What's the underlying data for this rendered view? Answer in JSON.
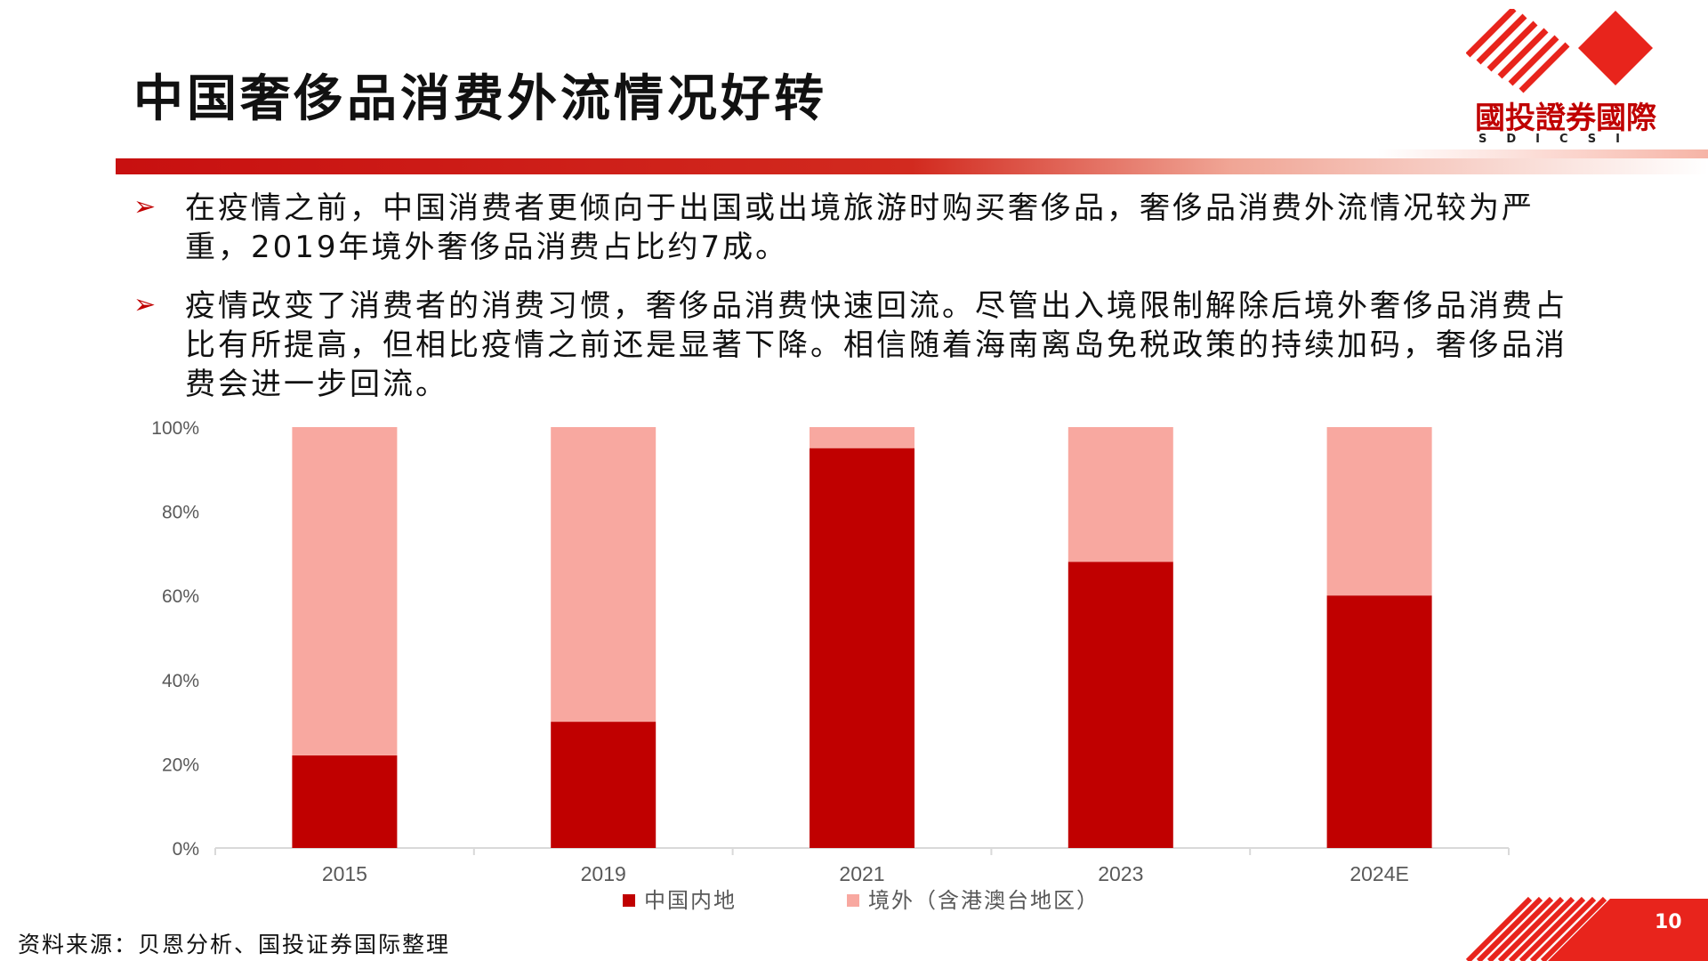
{
  "header": {
    "title": "中国奢侈品消费外流情况好转",
    "logo_text": "國投證券國際",
    "logo_sub": "SDICSI"
  },
  "bullets": [
    "在疫情之前，中国消费者更倾向于出国或出境旅游时购买奢侈品，奢侈品消费外流情况较为严重，2019年境外奢侈品消费占比约7成。",
    "疫情改变了消费者的消费习惯，奢侈品消费快速回流。尽管出入境限制解除后境外奢侈品消费占比有所提高，但相比疫情之前还是显著下降。相信随着海南离岛免税政策的持续加码，奢侈品消费会进一步回流。"
  ],
  "colors": {
    "accent": "#c00000",
    "domestic": "#c00000",
    "overseas": "#f8a8a0"
  },
  "chart_data": {
    "type": "bar",
    "stacked": true,
    "categories": [
      "2015",
      "2019",
      "2021",
      "2023",
      "2024E"
    ],
    "series": [
      {
        "name": "中国内地",
        "values": [
          22,
          30,
          95,
          68,
          60
        ],
        "color": "#c00000"
      },
      {
        "name": "境外（含港澳台地区）",
        "values": [
          78,
          70,
          5,
          32,
          40
        ],
        "color": "#f8a8a0"
      }
    ],
    "yticks": [
      "0%",
      "20%",
      "40%",
      "60%",
      "80%",
      "100%"
    ],
    "ylim": [
      0,
      100
    ],
    "legend_position": "bottom"
  },
  "footer": {
    "source": "资料来源：贝恩分析、国投证券国际整理",
    "page_number": "10"
  }
}
